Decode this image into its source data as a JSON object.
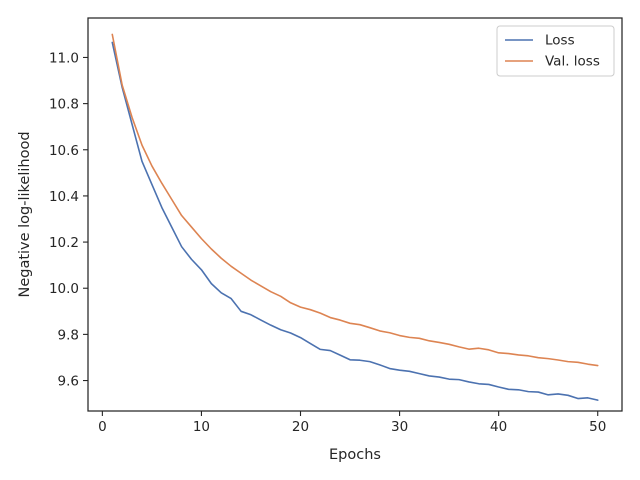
{
  "chart_data": {
    "type": "line",
    "title": "",
    "xlabel": "Epochs",
    "ylabel": "Negative log-likelihood",
    "xlim": [
      -1.45,
      52.45
    ],
    "ylim": [
      9.468,
      11.171
    ],
    "xticks": [
      0,
      10,
      20,
      30,
      40,
      50
    ],
    "yticks": [
      9.6,
      9.8,
      10.0,
      10.2,
      10.4,
      10.6,
      10.8,
      11.0
    ],
    "ytick_labels": [
      "9.6",
      "9.8",
      "10.0",
      "10.2",
      "10.4",
      "10.6",
      "10.8",
      "11.0"
    ],
    "grid": false,
    "legend_position": "top-right",
    "x": [
      1,
      2,
      3,
      4,
      5,
      6,
      7,
      8,
      9,
      10,
      11,
      12,
      13,
      14,
      15,
      16,
      17,
      18,
      19,
      20,
      21,
      22,
      23,
      24,
      25,
      26,
      27,
      28,
      29,
      30,
      31,
      32,
      33,
      34,
      35,
      36,
      37,
      38,
      39,
      40,
      41,
      42,
      43,
      44,
      45,
      46,
      47,
      48,
      49,
      50
    ],
    "series": [
      {
        "name": "Loss",
        "color": "#4c72b0",
        "values": [
          11.065,
          10.87,
          10.71,
          10.55,
          10.45,
          10.35,
          10.265,
          10.18,
          10.125,
          10.08,
          10.02,
          9.98,
          9.955,
          9.9,
          9.885,
          9.862,
          9.84,
          9.82,
          9.806,
          9.786,
          9.76,
          9.735,
          9.73,
          9.71,
          9.69,
          9.688,
          9.682,
          9.668,
          9.652,
          9.645,
          9.64,
          9.63,
          9.62,
          9.615,
          9.606,
          9.604,
          9.594,
          9.586,
          9.583,
          9.572,
          9.562,
          9.56,
          9.552,
          9.55,
          9.538,
          9.542,
          9.536,
          9.522,
          9.525,
          9.515
        ]
      },
      {
        "name": "Val. loss",
        "color": "#dd8452",
        "values": [
          11.1,
          10.88,
          10.74,
          10.62,
          10.53,
          10.455,
          10.385,
          10.315,
          10.265,
          10.215,
          10.17,
          10.13,
          10.095,
          10.065,
          10.035,
          10.01,
          9.985,
          9.965,
          9.937,
          9.918,
          9.907,
          9.892,
          9.873,
          9.862,
          9.848,
          9.842,
          9.829,
          9.815,
          9.807,
          9.795,
          9.787,
          9.783,
          9.772,
          9.765,
          9.757,
          9.746,
          9.736,
          9.74,
          9.733,
          9.72,
          9.717,
          9.711,
          9.707,
          9.699,
          9.695,
          9.689,
          9.682,
          9.679,
          9.671,
          9.665
        ]
      }
    ]
  }
}
